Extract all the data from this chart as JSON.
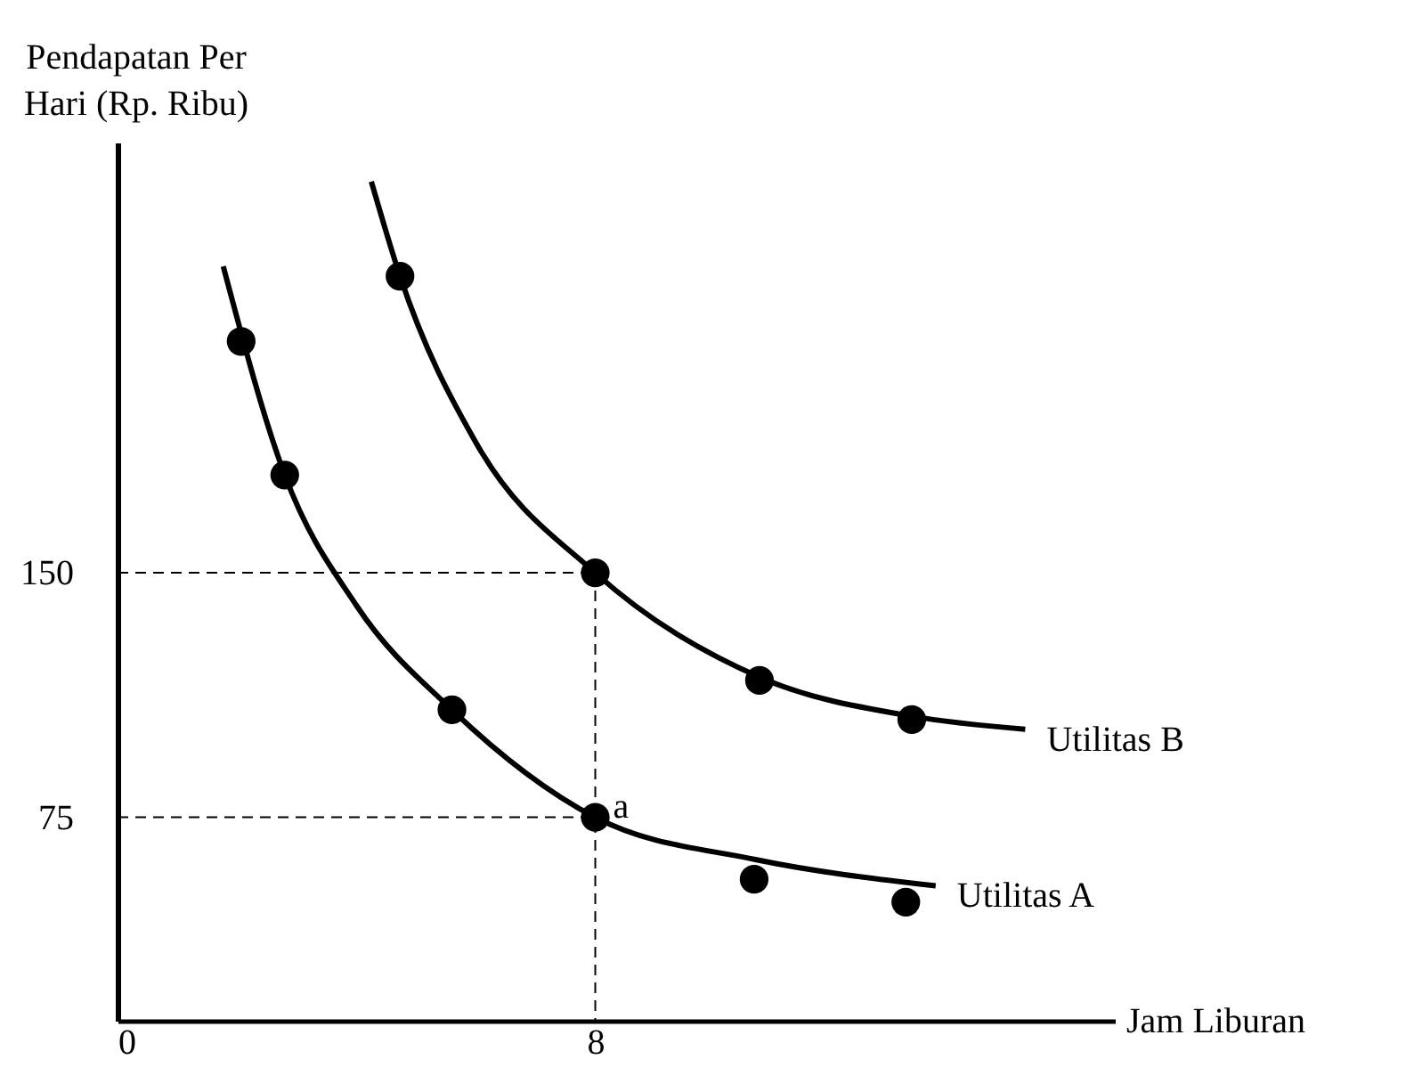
{
  "chart_data": {
    "type": "line",
    "xlabel": "Jam Liburan",
    "ylabel": "Pendapatan Per\nHari (Rp. Ribu)",
    "xlim": [
      0,
      16.7
    ],
    "ylim": [
      12.6,
      282
    ],
    "xticks": [
      0,
      8
    ],
    "yticks": [
      75,
      150
    ],
    "grid": false,
    "series": [
      {
        "name": "Utilitas A",
        "type": "line",
        "color": "#000000",
        "line_style": "solid",
        "marker": "none",
        "x": [
          1.77,
          2.8,
          4,
          5.6,
          8,
          10.7,
          13.7
        ],
        "values": [
          244,
          180,
          140,
          108,
          75,
          62,
          54
        ]
      },
      {
        "type": "scatter",
        "color": "#000000",
        "marker": "circle",
        "x": [
          2.07,
          2.8,
          5.6,
          8,
          10.66,
          13.2
        ],
        "values": [
          221,
          180,
          108,
          75,
          56,
          49
        ]
      },
      {
        "name": "Utilitas B",
        "type": "line",
        "color": "#000000",
        "line_style": "solid",
        "marker": "none",
        "x": [
          4.25,
          4.73,
          6,
          8,
          10.75,
          13.3,
          15.2
        ],
        "values": [
          270,
          241,
          190,
          150,
          118,
          106,
          102
        ]
      },
      {
        "type": "scatter",
        "color": "#000000",
        "marker": "circle",
        "x": [
          4.73,
          8,
          10.75,
          13.3
        ],
        "values": [
          241,
          150,
          117,
          105
        ]
      },
      {
        "type": "line",
        "color": "#000000",
        "line_style": "dashed",
        "marker": "none",
        "x": [
          0,
          8
        ],
        "values": [
          150,
          150
        ]
      },
      {
        "type": "line",
        "color": "#000000",
        "line_style": "dashed",
        "marker": "none",
        "x": [
          8,
          8
        ],
        "values": [
          150,
          12.6
        ]
      },
      {
        "type": "line",
        "color": "#000000",
        "line_style": "dashed",
        "marker": "none",
        "x": [
          0,
          8
        ],
        "values": [
          75,
          75
        ]
      }
    ],
    "annotations": [
      {
        "text": "a",
        "x": 8,
        "y": 75
      }
    ]
  }
}
